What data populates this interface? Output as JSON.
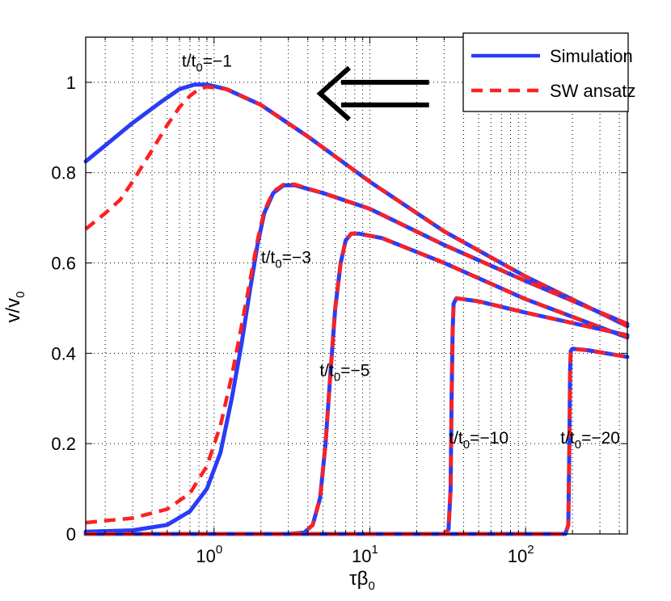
{
  "chart_data": {
    "type": "line",
    "title": "",
    "xscale": "log",
    "xlim": [
      0.15,
      450
    ],
    "ylim": [
      0,
      1.1
    ],
    "grid": true,
    "xlabel": {
      "main": "τβ",
      "sub": "0"
    },
    "ylabel": {
      "main": "v/v",
      "sub": "0"
    },
    "xticks": [
      {
        "value": 1,
        "base": "10",
        "exp": "0"
      },
      {
        "value": 10,
        "base": "10",
        "exp": "1"
      },
      {
        "value": 100,
        "base": "10",
        "exp": "2"
      }
    ],
    "yticks": [
      {
        "value": 0,
        "label": "0"
      },
      {
        "value": 0.2,
        "label": "0.2"
      },
      {
        "value": 0.4,
        "label": "0.4"
      },
      {
        "value": 0.6,
        "label": "0.6"
      },
      {
        "value": 0.8,
        "label": "0.8"
      },
      {
        "value": 1,
        "label": "1"
      }
    ],
    "legend": {
      "position": "top-right",
      "entries": [
        {
          "name": "Simulation",
          "color": "#2a3cf5",
          "style": "solid"
        },
        {
          "name": "SW ansatz",
          "color": "#ff2020",
          "style": "dashed"
        }
      ]
    },
    "series": [
      {
        "name": "Simulation",
        "case": "t/t0=-1",
        "color": "#2a3cf5",
        "style": "solid",
        "points": [
          [
            0.15,
            0.825
          ],
          [
            0.2,
            0.86
          ],
          [
            0.3,
            0.91
          ],
          [
            0.45,
            0.955
          ],
          [
            0.6,
            0.985
          ],
          [
            0.75,
            0.995
          ],
          [
            0.9,
            0.995
          ],
          [
            1.2,
            0.985
          ],
          [
            2,
            0.95
          ],
          [
            4,
            0.88
          ],
          [
            10,
            0.78
          ],
          [
            30,
            0.67
          ],
          [
            100,
            0.57
          ],
          [
            450,
            0.46
          ]
        ]
      },
      {
        "name": "SW ansatz",
        "case": "t/t0=-1",
        "color": "#ff2020",
        "style": "dashed",
        "points": [
          [
            0.15,
            0.675
          ],
          [
            0.2,
            0.71
          ],
          [
            0.25,
            0.74
          ],
          [
            0.3,
            0.78
          ],
          [
            0.4,
            0.85
          ],
          [
            0.5,
            0.905
          ],
          [
            0.6,
            0.945
          ],
          [
            0.7,
            0.97
          ],
          [
            0.8,
            0.985
          ],
          [
            0.9,
            0.99
          ],
          [
            1.2,
            0.985
          ],
          [
            2,
            0.95
          ],
          [
            4,
            0.88
          ],
          [
            10,
            0.78
          ],
          [
            30,
            0.67
          ],
          [
            100,
            0.57
          ],
          [
            450,
            0.46
          ]
        ]
      },
      {
        "name": "Simulation",
        "case": "t/t0=-3",
        "color": "#2a3cf5",
        "style": "solid",
        "points": [
          [
            0.15,
            0.005
          ],
          [
            0.3,
            0.008
          ],
          [
            0.5,
            0.02
          ],
          [
            0.7,
            0.05
          ],
          [
            0.9,
            0.1
          ],
          [
            1.1,
            0.18
          ],
          [
            1.3,
            0.3
          ],
          [
            1.5,
            0.42
          ],
          [
            1.7,
            0.54
          ],
          [
            1.9,
            0.64
          ],
          [
            2.1,
            0.71
          ],
          [
            2.4,
            0.755
          ],
          [
            2.8,
            0.772
          ],
          [
            3.3,
            0.772
          ],
          [
            5,
            0.755
          ],
          [
            10,
            0.72
          ],
          [
            30,
            0.64
          ],
          [
            100,
            0.56
          ],
          [
            450,
            0.465
          ]
        ]
      },
      {
        "name": "SW ansatz",
        "case": "t/t0=-3",
        "color": "#ff2020",
        "style": "dashed",
        "points": [
          [
            0.15,
            0.025
          ],
          [
            0.3,
            0.035
          ],
          [
            0.5,
            0.055
          ],
          [
            0.7,
            0.09
          ],
          [
            0.9,
            0.15
          ],
          [
            1.1,
            0.24
          ],
          [
            1.3,
            0.35
          ],
          [
            1.5,
            0.46
          ],
          [
            1.7,
            0.56
          ],
          [
            1.9,
            0.65
          ],
          [
            2.1,
            0.715
          ],
          [
            2.4,
            0.758
          ],
          [
            2.8,
            0.774
          ],
          [
            3.3,
            0.774
          ],
          [
            5,
            0.755
          ],
          [
            10,
            0.72
          ],
          [
            30,
            0.64
          ],
          [
            100,
            0.56
          ],
          [
            450,
            0.465
          ]
        ]
      },
      {
        "name": "Simulation",
        "case": "t/t0=-5",
        "color": "#2a3cf5",
        "style": "solid",
        "points": [
          [
            0.15,
            0
          ],
          [
            3,
            0
          ],
          [
            3.8,
            0.003
          ],
          [
            4.3,
            0.02
          ],
          [
            4.8,
            0.08
          ],
          [
            5.2,
            0.2
          ],
          [
            5.6,
            0.36
          ],
          [
            6,
            0.5
          ],
          [
            6.5,
            0.6
          ],
          [
            7,
            0.65
          ],
          [
            7.6,
            0.665
          ],
          [
            8.5,
            0.665
          ],
          [
            12,
            0.655
          ],
          [
            30,
            0.6
          ],
          [
            100,
            0.52
          ],
          [
            450,
            0.435
          ]
        ]
      },
      {
        "name": "SW ansatz",
        "case": "t/t0=-5",
        "color": "#ff2020",
        "style": "dashed",
        "points": [
          [
            0.15,
            0
          ],
          [
            3,
            0
          ],
          [
            3.8,
            0.003
          ],
          [
            4.3,
            0.02
          ],
          [
            4.8,
            0.08
          ],
          [
            5.2,
            0.2
          ],
          [
            5.6,
            0.36
          ],
          [
            6,
            0.5
          ],
          [
            6.5,
            0.6
          ],
          [
            7,
            0.65
          ],
          [
            7.6,
            0.665
          ],
          [
            8.5,
            0.665
          ],
          [
            12,
            0.655
          ],
          [
            30,
            0.6
          ],
          [
            100,
            0.52
          ],
          [
            450,
            0.435
          ]
        ]
      },
      {
        "name": "Simulation",
        "case": "t/t0=-10",
        "color": "#2a3cf5",
        "style": "solid",
        "points": [
          [
            0.15,
            0
          ],
          [
            30,
            0
          ],
          [
            32,
            0.01
          ],
          [
            33,
            0.1
          ],
          [
            33.5,
            0.3
          ],
          [
            34,
            0.45
          ],
          [
            34.5,
            0.51
          ],
          [
            36,
            0.522
          ],
          [
            50,
            0.515
          ],
          [
            100,
            0.49
          ],
          [
            450,
            0.44
          ]
        ]
      },
      {
        "name": "SW ansatz",
        "case": "t/t0=-10",
        "color": "#ff2020",
        "style": "dashed",
        "points": [
          [
            0.15,
            0
          ],
          [
            30,
            0
          ],
          [
            32,
            0.01
          ],
          [
            33,
            0.1
          ],
          [
            33.5,
            0.3
          ],
          [
            34,
            0.45
          ],
          [
            34.5,
            0.51
          ],
          [
            36,
            0.522
          ],
          [
            50,
            0.515
          ],
          [
            100,
            0.49
          ],
          [
            450,
            0.44
          ]
        ]
      },
      {
        "name": "Simulation",
        "case": "t/t0=-20",
        "color": "#2a3cf5",
        "style": "solid",
        "points": [
          [
            0.15,
            0
          ],
          [
            180,
            0
          ],
          [
            188,
            0.02
          ],
          [
            191,
            0.2
          ],
          [
            193,
            0.36
          ],
          [
            195,
            0.405
          ],
          [
            200,
            0.41
          ],
          [
            250,
            0.407
          ],
          [
            450,
            0.392
          ]
        ]
      },
      {
        "name": "SW ansatz",
        "case": "t/t0=-20",
        "color": "#ff2020",
        "style": "dashed",
        "points": [
          [
            0.15,
            0
          ],
          [
            180,
            0
          ],
          [
            188,
            0.02
          ],
          [
            191,
            0.2
          ],
          [
            193,
            0.36
          ],
          [
            195,
            0.405
          ],
          [
            200,
            0.41
          ],
          [
            250,
            0.407
          ],
          [
            450,
            0.392
          ]
        ]
      }
    ],
    "annotations": [
      {
        "main": "t/t",
        "sub": "0",
        "tail": "=−1",
        "x": 0.9,
        "y": 1.035
      },
      {
        "main": "t/t",
        "sub": "0",
        "tail": "=−3",
        "x": 2.9,
        "y": 0.6
      },
      {
        "main": "t/t",
        "sub": "0",
        "tail": "=−5",
        "x": 6.9,
        "y": 0.35
      },
      {
        "main": "t/t",
        "sub": "0",
        "tail": "=−10",
        "x": 50,
        "y": 0.2
      },
      {
        "main": "t/t",
        "sub": "0",
        "tail": "=−20",
        "x": 260,
        "y": 0.2
      }
    ],
    "arrow": {
      "direction": "left",
      "style": "double",
      "from_x": 24,
      "to_x": 4.8,
      "y": 0.975
    }
  }
}
